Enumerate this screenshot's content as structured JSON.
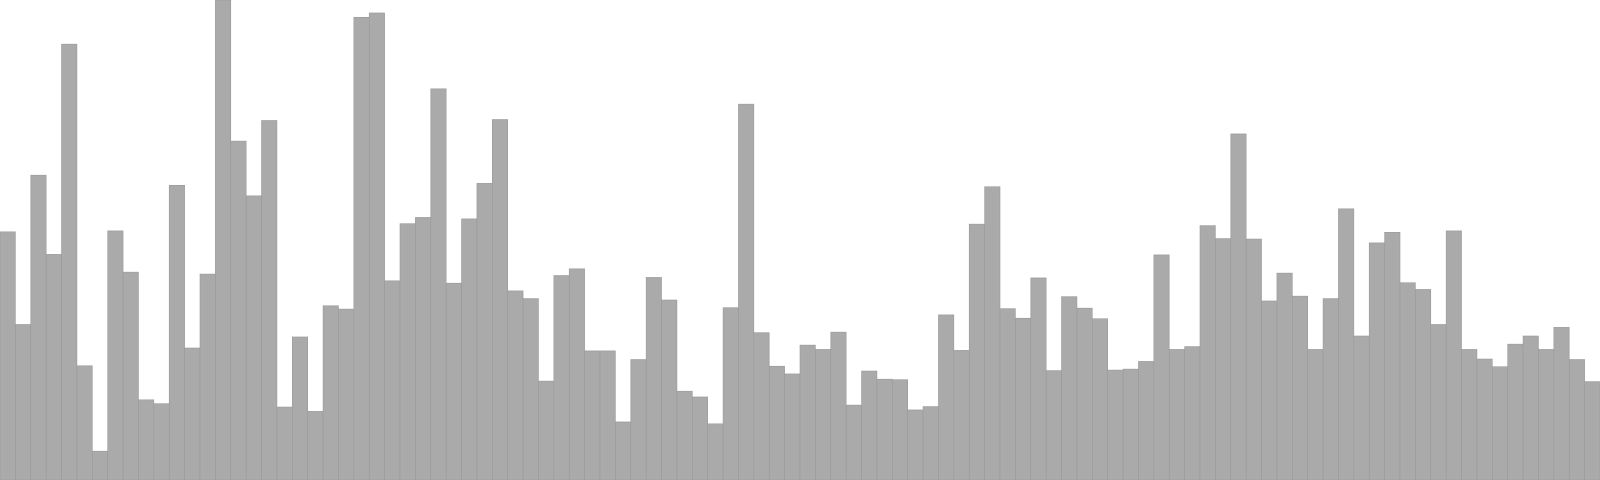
{
  "chart_data": {
    "type": "bar",
    "grid": false,
    "legend": "none",
    "ylim": [
      0,
      100
    ],
    "bar_color": "#aaaaaa",
    "bar_stroke": "#999999",
    "background": "#ffffff",
    "values": [
      51.7,
      32.4,
      63.5,
      47.0,
      90.8,
      23.8,
      6.0,
      51.9,
      43.3,
      16.7,
      15.9,
      61.4,
      27.5,
      42.9,
      100.0,
      70.6,
      59.2,
      74.9,
      15.2,
      29.8,
      14.3,
      36.3,
      35.6,
      96.4,
      97.3,
      41.5,
      53.4,
      54.7,
      81.5,
      41.0,
      54.4,
      61.8,
      75.1,
      39.4,
      37.8,
      20.6,
      42.6,
      44.0,
      26.9,
      26.9,
      12.1,
      25.1,
      42.2,
      37.5,
      18.5,
      17.3,
      11.7,
      35.9,
      78.3,
      30.7,
      23.7,
      22.1,
      28.1,
      27.2,
      30.8,
      15.6,
      22.7,
      21.0,
      20.9,
      14.6,
      15.3,
      34.4,
      27.0,
      53.3,
      61.1,
      35.7,
      33.7,
      42.1,
      22.8,
      38.2,
      35.8,
      33.6,
      22.9,
      23.1,
      24.7,
      46.9,
      27.2,
      27.8,
      53.0,
      50.3,
      72.1,
      50.2,
      37.3,
      43.1,
      38.3,
      27.2,
      37.8,
      56.5,
      30.0,
      49.4,
      51.6,
      41.1,
      39.7,
      32.4,
      51.9,
      27.2,
      25.2,
      23.6,
      28.3,
      30.0,
      27.2,
      31.8,
      25.1,
      20.5
    ]
  }
}
